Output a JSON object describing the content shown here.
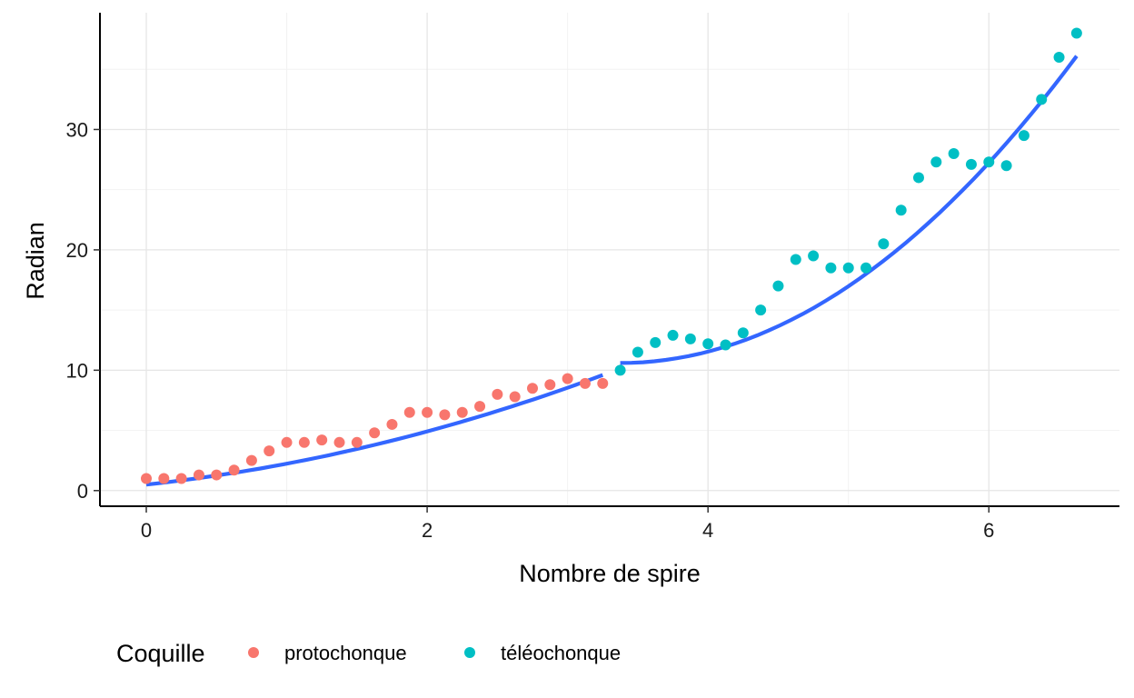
{
  "chart_data": {
    "type": "scatter",
    "xlabel": "Nombre de spire",
    "ylabel": "Radian",
    "xlim": [
      -0.33,
      6.93
    ],
    "ylim": [
      -1.3,
      39.7
    ],
    "x_ticks": [
      0,
      2,
      4,
      6
    ],
    "y_ticks": [
      0,
      10,
      20,
      30
    ],
    "x_tick_labels": [
      "0",
      "2",
      "4",
      "6"
    ],
    "y_tick_labels": [
      "0",
      "10",
      "20",
      "30"
    ],
    "grid": true,
    "legend": {
      "title": "Coquille",
      "position": "bottom",
      "entries": [
        {
          "label": "protochonque",
          "color": "#F8766D"
        },
        {
          "label": "téléochonque",
          "color": "#00BFC4"
        }
      ]
    },
    "series": [
      {
        "name": "protochonque",
        "color": "#F8766D",
        "x": [
          0,
          0.125,
          0.25,
          0.375,
          0.5,
          0.625,
          0.75,
          0.875,
          1.0,
          1.125,
          1.25,
          1.375,
          1.5,
          1.625,
          1.75,
          1.875,
          2.0,
          2.125,
          2.25,
          2.375,
          2.5,
          2.625,
          2.75,
          2.875,
          3.0,
          3.125,
          3.25
        ],
        "y": [
          1.0,
          1.0,
          1.0,
          1.3,
          1.3,
          1.7,
          2.5,
          3.3,
          4.0,
          4.0,
          4.2,
          4.0,
          4.0,
          4.8,
          5.5,
          6.5,
          6.5,
          6.3,
          6.5,
          7.0,
          8.0,
          7.8,
          8.5,
          8.8,
          9.3,
          8.9,
          8.9
        ]
      },
      {
        "name": "téléochonque",
        "color": "#00BFC4",
        "x": [
          3.375,
          3.5,
          3.625,
          3.75,
          3.875,
          4.0,
          4.125,
          4.25,
          4.375,
          4.5,
          4.625,
          4.75,
          4.875,
          5.0,
          5.125,
          5.25,
          5.375,
          5.5,
          5.625,
          5.75,
          5.875,
          6.0,
          6.125,
          6.25,
          6.375,
          6.5,
          6.625
        ],
        "y": [
          10.0,
          11.5,
          12.3,
          12.9,
          12.6,
          12.2,
          12.1,
          13.1,
          15.0,
          17.0,
          19.2,
          19.5,
          18.5,
          18.5,
          18.5,
          20.5,
          23.3,
          26.0,
          27.3,
          28.0,
          27.1,
          27.3,
          27.0,
          29.5,
          32.5,
          36.0,
          38.0
        ]
      }
    ],
    "fit_lines": [
      {
        "x": [
          0.0,
          3.25
        ],
        "y": [
          0.5,
          9.6
        ],
        "curvature": 0.55,
        "color": "#3366FF"
      },
      {
        "x": [
          3.375,
          6.625
        ],
        "y": [
          10.6,
          36.1
        ],
        "curvature": 1.0,
        "color": "#3366FF"
      }
    ]
  }
}
